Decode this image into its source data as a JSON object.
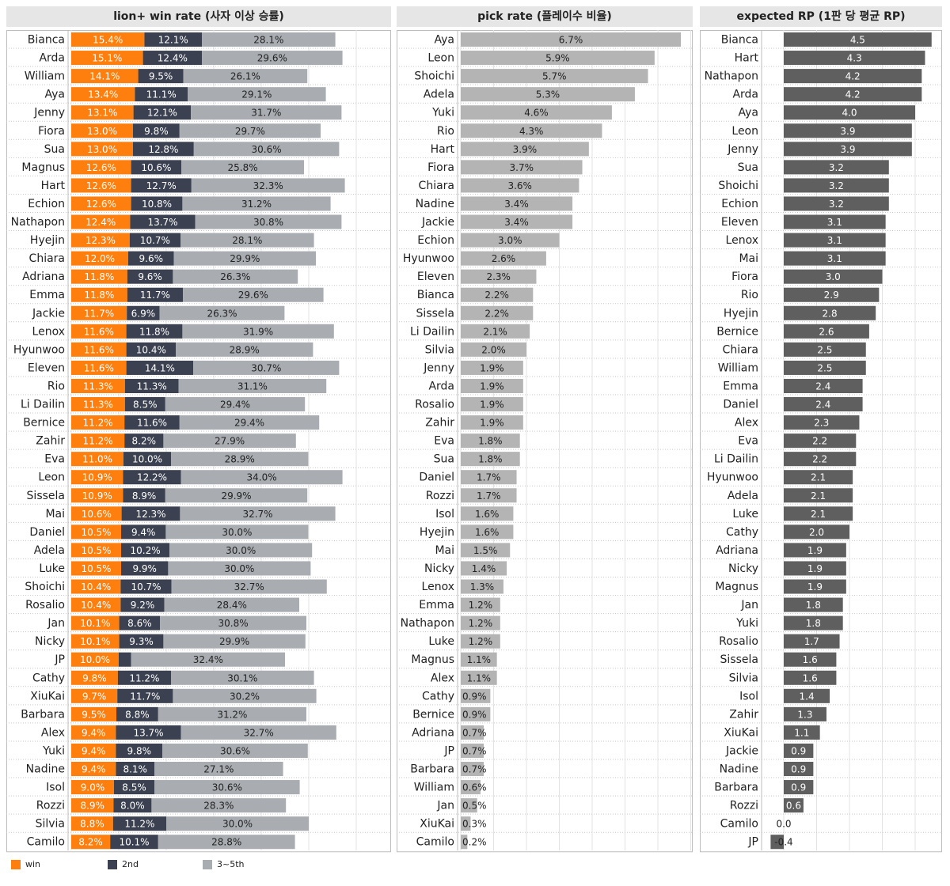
{
  "chart_data": [
    {
      "type": "bar",
      "stacked": true,
      "orientation": "horizontal",
      "title": "lion+ win rate (사자 이상 승률)",
      "categories": [
        "Bianca",
        "Arda",
        "William",
        "Aya",
        "Jenny",
        "Fiora",
        "Sua",
        "Magnus",
        "Hart",
        "Echion",
        "Nathapon",
        "Hyejin",
        "Chiara",
        "Adriana",
        "Emma",
        "Jackie",
        "Lenox",
        "Hyunwoo",
        "Eleven",
        "Rio",
        "Li Dailin",
        "Bernice",
        "Zahir",
        "Eva",
        "Leon",
        "Sissela",
        "Mai",
        "Daniel",
        "Adela",
        "Luke",
        "Shoichi",
        "Rosalio",
        "Jan",
        "Nicky",
        "JP",
        "Cathy",
        "XiuKai",
        "Barbara",
        "Alex",
        "Yuki",
        "Nadine",
        "Isol",
        "Rozzi",
        "Silvia",
        "Camilo"
      ],
      "series": [
        {
          "name": "win",
          "color": "#ff7f0e",
          "values": [
            15.4,
            15.1,
            14.1,
            13.4,
            13.1,
            13.0,
            13.0,
            12.6,
            12.6,
            12.6,
            12.4,
            12.3,
            12.0,
            11.8,
            11.8,
            11.7,
            11.6,
            11.6,
            11.6,
            11.3,
            11.3,
            11.2,
            11.2,
            11.0,
            10.9,
            10.9,
            10.6,
            10.5,
            10.5,
            10.5,
            10.4,
            10.4,
            10.1,
            10.1,
            10.0,
            9.8,
            9.7,
            9.5,
            9.4,
            9.4,
            9.4,
            9.0,
            8.9,
            8.8,
            8.2
          ],
          "labels": [
            "15.4%",
            "15.1%",
            "14.1%",
            "13.4%",
            "13.1%",
            "13.0%",
            "13.0%",
            "12.6%",
            "12.6%",
            "12.6%",
            "12.4%",
            "12.3%",
            "12.0%",
            "11.8%",
            "11.8%",
            "11.7%",
            "11.6%",
            "11.6%",
            "11.6%",
            "11.3%",
            "11.3%",
            "11.2%",
            "11.2%",
            "11.0%",
            "10.9%",
            "10.9%",
            "10.6%",
            "10.5%",
            "10.5%",
            "10.5%",
            "10.4%",
            "10.4%",
            "10.1%",
            "10.1%",
            "10.0%",
            "9.8%",
            "9.7%",
            "9.5%",
            "9.4%",
            "9.4%",
            "9.4%",
            "9.0%",
            "8.9%",
            "8.8%",
            "8.2%"
          ]
        },
        {
          "name": "2nd",
          "color": "#3b4150",
          "values": [
            12.1,
            12.4,
            9.5,
            11.1,
            12.1,
            9.8,
            12.8,
            10.6,
            12.7,
            10.8,
            13.7,
            10.7,
            9.6,
            9.6,
            11.7,
            6.9,
            11.8,
            10.4,
            14.1,
            11.3,
            8.5,
            11.6,
            8.2,
            10.0,
            12.2,
            8.9,
            12.3,
            9.4,
            10.2,
            9.9,
            10.7,
            9.2,
            8.6,
            9.3,
            2.6,
            11.2,
            11.7,
            8.8,
            13.7,
            9.8,
            8.1,
            8.5,
            8.0,
            11.2,
            10.1
          ],
          "labels": [
            "12.1%",
            "12.4%",
            "9.5%",
            "11.1%",
            "12.1%",
            "9.8%",
            "12.8%",
            "10.6%",
            "12.7%",
            "10.8%",
            "13.7%",
            "10.7%",
            "9.6%",
            "9.6%",
            "11.7%",
            "6.9%",
            "11.8%",
            "10.4%",
            "14.1%",
            "11.3%",
            "8.5%",
            "11.6%",
            "8.2%",
            "10.0%",
            "12.2%",
            "8.9%",
            "12.3%",
            "9.4%",
            "10.2%",
            "9.9%",
            "10.7%",
            "9.2%",
            "8.6%",
            "9.3%",
            "",
            "11.2%",
            "11.7%",
            "8.8%",
            "13.7%",
            "9.8%",
            "8.1%",
            "8.5%",
            "8.0%",
            "11.2%",
            "10.1%"
          ]
        },
        {
          "name": "3~5th",
          "color": "#a9adb2",
          "values": [
            28.1,
            29.6,
            26.1,
            29.1,
            31.7,
            29.7,
            30.6,
            25.8,
            32.3,
            31.2,
            30.8,
            28.1,
            29.9,
            26.3,
            29.6,
            26.3,
            31.9,
            28.9,
            30.7,
            31.1,
            29.4,
            29.4,
            27.9,
            28.9,
            34.0,
            29.9,
            32.7,
            30.0,
            30.0,
            30.0,
            32.7,
            28.4,
            30.8,
            29.9,
            32.4,
            30.1,
            30.2,
            31.2,
            32.7,
            30.6,
            27.1,
            30.6,
            28.3,
            30.0,
            28.8
          ],
          "labels": [
            "28.1%",
            "29.6%",
            "26.1%",
            "29.1%",
            "31.7%",
            "29.7%",
            "30.6%",
            "25.8%",
            "32.3%",
            "31.2%",
            "30.8%",
            "28.1%",
            "29.9%",
            "26.3%",
            "29.6%",
            "26.3%",
            "31.9%",
            "28.9%",
            "30.7%",
            "31.1%",
            "29.4%",
            "29.4%",
            "27.9%",
            "28.9%",
            "34.0%",
            "29.9%",
            "32.7%",
            "30.0%",
            "30.0%",
            "30.0%",
            "32.7%",
            "28.4%",
            "30.8%",
            "29.9%",
            "32.4%",
            "30.1%",
            "30.2%",
            "31.2%",
            "32.7%",
            "30.6%",
            "27.1%",
            "30.6%",
            "28.3%",
            "30.0%",
            "28.8%"
          ]
        }
      ],
      "xlim": [
        0,
        60
      ],
      "grid": true,
      "legend": "bottom-left"
    },
    {
      "type": "bar",
      "orientation": "horizontal",
      "title": "pick rate (플레이수 비율)",
      "color": "#b4b4b4",
      "categories": [
        "Aya",
        "Leon",
        "Shoichi",
        "Adela",
        "Yuki",
        "Rio",
        "Hart",
        "Fiora",
        "Chiara",
        "Nadine",
        "Jackie",
        "Echion",
        "Hyunwoo",
        "Eleven",
        "Bianca",
        "Sissela",
        "Li Dailin",
        "Silvia",
        "Jenny",
        "Arda",
        "Rosalio",
        "Zahir",
        "Eva",
        "Sua",
        "Daniel",
        "Rozzi",
        "Isol",
        "Hyejin",
        "Mai",
        "Nicky",
        "Lenox",
        "Emma",
        "Nathapon",
        "Luke",
        "Magnus",
        "Alex",
        "Cathy",
        "Bernice",
        "Adriana",
        "JP",
        "Barbara",
        "William",
        "Jan",
        "XiuKai",
        "Camilo"
      ],
      "values": [
        6.7,
        5.9,
        5.7,
        5.3,
        4.6,
        4.3,
        3.9,
        3.7,
        3.6,
        3.4,
        3.4,
        3.0,
        2.6,
        2.3,
        2.2,
        2.2,
        2.1,
        2.0,
        1.9,
        1.9,
        1.9,
        1.9,
        1.8,
        1.8,
        1.7,
        1.7,
        1.6,
        1.6,
        1.5,
        1.4,
        1.3,
        1.2,
        1.2,
        1.2,
        1.1,
        1.1,
        0.9,
        0.9,
        0.7,
        0.7,
        0.7,
        0.6,
        0.5,
        0.3,
        0.2
      ],
      "labels": [
        "6.7%",
        "5.9%",
        "5.7%",
        "5.3%",
        "4.6%",
        "4.3%",
        "3.9%",
        "3.7%",
        "3.6%",
        "3.4%",
        "3.4%",
        "3.0%",
        "2.6%",
        "2.3%",
        "2.2%",
        "2.2%",
        "2.1%",
        "2.0%",
        "1.9%",
        "1.9%",
        "1.9%",
        "1.9%",
        "1.8%",
        "1.8%",
        "1.7%",
        "1.7%",
        "1.6%",
        "1.6%",
        "1.5%",
        "1.4%",
        "1.3%",
        "1.2%",
        "1.2%",
        "1.2%",
        "1.1%",
        "1.1%",
        "0.9%",
        "0.9%",
        "0.7%",
        "0.7%",
        "0.7%",
        "0.6%",
        "0.5%",
        "0.3%",
        "0.2%"
      ],
      "xlim": [
        0,
        7
      ],
      "grid": true
    },
    {
      "type": "bar",
      "orientation": "horizontal",
      "title": "expected RP (1판 당 평균 RP)",
      "color": "#5f5f5f",
      "categories": [
        "Bianca",
        "Hart",
        "Nathapon",
        "Arda",
        "Aya",
        "Leon",
        "Jenny",
        "Sua",
        "Shoichi",
        "Echion",
        "Eleven",
        "Lenox",
        "Mai",
        "Fiora",
        "Rio",
        "Hyejin",
        "Bernice",
        "Chiara",
        "William",
        "Emma",
        "Daniel",
        "Alex",
        "Eva",
        "Li Dailin",
        "Hyunwoo",
        "Adela",
        "Luke",
        "Cathy",
        "Adriana",
        "Nicky",
        "Magnus",
        "Jan",
        "Yuki",
        "Rosalio",
        "Sissela",
        "Silvia",
        "Isol",
        "Zahir",
        "XiuKai",
        "Jackie",
        "Nadine",
        "Barbara",
        "Rozzi",
        "Camilo",
        "JP"
      ],
      "values": [
        4.5,
        4.3,
        4.2,
        4.2,
        4.0,
        3.9,
        3.9,
        3.2,
        3.2,
        3.2,
        3.1,
        3.1,
        3.1,
        3.0,
        2.9,
        2.8,
        2.6,
        2.5,
        2.5,
        2.4,
        2.4,
        2.3,
        2.2,
        2.2,
        2.1,
        2.1,
        2.1,
        2.0,
        1.9,
        1.9,
        1.9,
        1.8,
        1.8,
        1.7,
        1.6,
        1.6,
        1.4,
        1.3,
        1.1,
        0.9,
        0.9,
        0.9,
        0.6,
        0.0,
        -0.4
      ],
      "labels": [
        "4.5",
        "4.3",
        "4.2",
        "4.2",
        "4.0",
        "3.9",
        "3.9",
        "3.2",
        "3.2",
        "3.2",
        "3.1",
        "3.1",
        "3.1",
        "3.0",
        "2.9",
        "2.8",
        "2.6",
        "2.5",
        "2.5",
        "2.4",
        "2.4",
        "2.3",
        "2.2",
        "2.2",
        "2.1",
        "2.1",
        "2.1",
        "2.0",
        "1.9",
        "1.9",
        "1.9",
        "1.8",
        "1.8",
        "1.7",
        "1.6",
        "1.6",
        "1.4",
        "1.3",
        "1.1",
        "0.9",
        "0.9",
        "0.9",
        "0.6",
        "0.0",
        "-0.4"
      ],
      "xlim": [
        -0.5,
        4.6
      ],
      "grid": true
    }
  ]
}
